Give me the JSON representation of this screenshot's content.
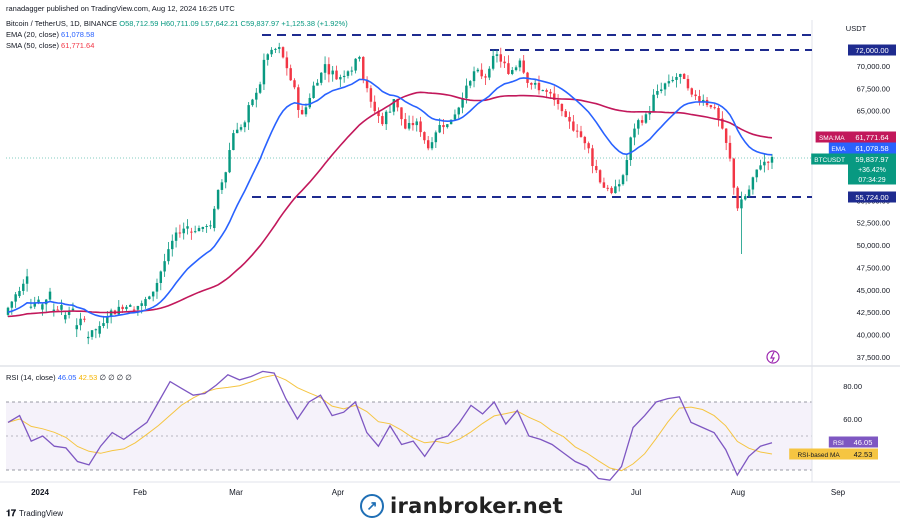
{
  "header": {
    "published_by": "ranadagger published on TradingView.com, Aug 12, 2024 16:25 UTC"
  },
  "legend": {
    "symbol": "Bitcoin / TetherUS, 1D, BINANCE",
    "o_label": "O",
    "o_value": "58,712.59",
    "h_label": "H",
    "h_value": "60,711.09",
    "l_label": "L",
    "l_value": "57,642.21",
    "c_label": "C",
    "c_value": "59,837.97",
    "change": "+1,125.38 (+1.92%)",
    "ema_label": "EMA (20, close)",
    "ema_value": "61,078.58",
    "sma_label": "SMA (50, close)",
    "sma_value": "61,771.64",
    "rsi_label": "RSI (14, close)",
    "rsi_value": "46.05",
    "rsi_ma_value": "42.53",
    "rsi_extra": "∅ ∅ ∅ ∅"
  },
  "colors": {
    "up": "#089981",
    "down": "#f23645",
    "ema": "#2962ff",
    "sma": "#c2185b",
    "rsi": "#7e57c2",
    "rsi_ma": "#f5c542",
    "level_line": "#1e2b8f"
  },
  "price_axis": {
    "currency": "USDT",
    "ticks": [
      "72,000.00",
      "70,000.00",
      "67,500.00",
      "65,000.00",
      "55,000.00",
      "52,500.00",
      "50,000.00",
      "47,500.00",
      "45,000.00",
      "42,500.00",
      "40,000.00",
      "37,500.00"
    ],
    "tags": [
      {
        "name": "level-72000-tag",
        "text": "72,000.00",
        "value": 72000,
        "color": "#1e2b8f"
      },
      {
        "name": "sma-tag",
        "label": "SMA:MA",
        "text": "61,771.64",
        "value": 61771.64,
        "color": "#c2185b"
      },
      {
        "name": "ema-tag",
        "label": "EMA",
        "text": "61,078.58",
        "value": 61078.58,
        "color": "#2962ff"
      },
      {
        "name": "btc-tag",
        "label": "BTCUSDT",
        "text": "59,837.97",
        "value": 59837.97,
        "color": "#089981",
        "extra": [
          "+36.42%",
          "07:34:29"
        ]
      },
      {
        "name": "level-55724-tag",
        "text": "55,724.00",
        "value": 55724,
        "color": "#1e2b8f"
      }
    ]
  },
  "rsi_axis": {
    "ticks": [
      "80.00",
      "60.00"
    ],
    "tags": [
      {
        "name": "rsi-tag",
        "label": "RSI",
        "text": "46.05",
        "color": "#7e57c2",
        "text_color": "#ffffff"
      },
      {
        "name": "rsi-ma-tag",
        "label": "RSI-based MA",
        "text": "42.53",
        "color": "#f5c542",
        "text_color": "#131722"
      }
    ]
  },
  "time_axis": {
    "labels": [
      "2024",
      "Feb",
      "Mar",
      "Apr",
      "Jul",
      "Aug",
      "Sep"
    ]
  },
  "footer": {
    "brand": "TradingView",
    "watermark": "iranbroker.net"
  },
  "chart_data": [
    {
      "type": "candlestick",
      "title": "Bitcoin / TetherUS, 1D, BINANCE",
      "ylabel": "USDT",
      "ylim": [
        37000,
        74000
      ],
      "x": [
        "2024",
        "Feb",
        "Mar",
        "Apr",
        "Jul",
        "Aug",
        "Sep"
      ],
      "horizontal_levels": [
        72000,
        55724
      ],
      "candles_anchor_close": [
        [
          42200,
          44500
        ],
        [
          44300,
          46500
        ],
        [
          43000,
          43900
        ],
        [
          42800,
          44800
        ],
        [
          42600,
          43300
        ],
        [
          41700,
          42900
        ],
        [
          40600,
          41700
        ],
        [
          39600,
          40600
        ],
        [
          40100,
          42000
        ],
        [
          42000,
          43100
        ],
        [
          43100,
          43300
        ],
        [
          42800,
          43500
        ],
        [
          43200,
          44800
        ],
        [
          44800,
          48200
        ],
        [
          48200,
          51400
        ],
        [
          51400,
          52100
        ],
        [
          51500,
          51900
        ],
        [
          51800,
          52200
        ],
        [
          51900,
          57000
        ],
        [
          57000,
          62500
        ],
        [
          62500,
          63700
        ],
        [
          63700,
          67000
        ],
        [
          67000,
          71300
        ],
        [
          71300,
          72100
        ],
        [
          72100,
          68400
        ],
        [
          68400,
          64600
        ],
        [
          64600,
          67800
        ],
        [
          67800,
          70200
        ],
        [
          70200,
          68500
        ],
        [
          68500,
          69400
        ],
        [
          69400,
          71000
        ],
        [
          71000,
          66000
        ],
        [
          66000,
          63500
        ],
        [
          63500,
          66300
        ],
        [
          66300,
          63000
        ],
        [
          63000,
          63800
        ],
        [
          63800,
          60800
        ],
        [
          60800,
          63400
        ],
        [
          63400,
          64000
        ],
        [
          64000,
          66400
        ],
        [
          66400,
          69400
        ],
        [
          69400,
          68700
        ],
        [
          68700,
          71300
        ],
        [
          71300,
          69100
        ],
        [
          69100,
          70600
        ],
        [
          70600,
          67900
        ],
        [
          67900,
          67300
        ],
        [
          67300,
          66200
        ],
        [
          66200,
          64300
        ],
        [
          64300,
          62700
        ],
        [
          62700,
          60800
        ],
        [
          60800,
          57000
        ],
        [
          57000,
          55800
        ],
        [
          55800,
          57800
        ],
        [
          57800,
          63000
        ],
        [
          63000,
          64600
        ],
        [
          64600,
          67200
        ],
        [
          67200,
          68300
        ],
        [
          68300,
          69100
        ],
        [
          69100,
          66800
        ],
        [
          66800,
          66200
        ],
        [
          66200,
          65300
        ],
        [
          65300,
          61400
        ],
        [
          61400,
          54100
        ],
        [
          54100,
          56200
        ],
        [
          56200,
          58900
        ],
        [
          58900,
          59838
        ]
      ],
      "series": [
        {
          "name": "EMA (20, close)",
          "last": 61078.58
        },
        {
          "name": "SMA (50, close)",
          "last": 61771.64
        }
      ]
    },
    {
      "type": "line",
      "title": "RSI (14, close)",
      "ylim": [
        20,
        90
      ],
      "reference_lines": [
        70,
        50,
        30
      ],
      "series": [
        {
          "name": "RSI",
          "last": 46.05,
          "values": [
            58,
            62,
            47,
            50,
            44,
            43,
            35,
            33,
            44,
            52,
            48,
            53,
            58,
            70,
            82,
            78,
            74,
            75,
            80,
            86,
            83,
            85,
            88,
            87,
            72,
            60,
            70,
            74,
            62,
            64,
            70,
            52,
            44,
            56,
            45,
            47,
            38,
            48,
            50,
            58,
            68,
            63,
            70,
            57,
            65,
            50,
            48,
            45,
            40,
            35,
            32,
            25,
            24,
            32,
            55,
            62,
            70,
            72,
            73,
            58,
            55,
            52,
            42,
            27,
            38,
            44,
            46
          ]
        },
        {
          "name": "RSI-based MA",
          "last": 42.53
        }
      ]
    }
  ]
}
